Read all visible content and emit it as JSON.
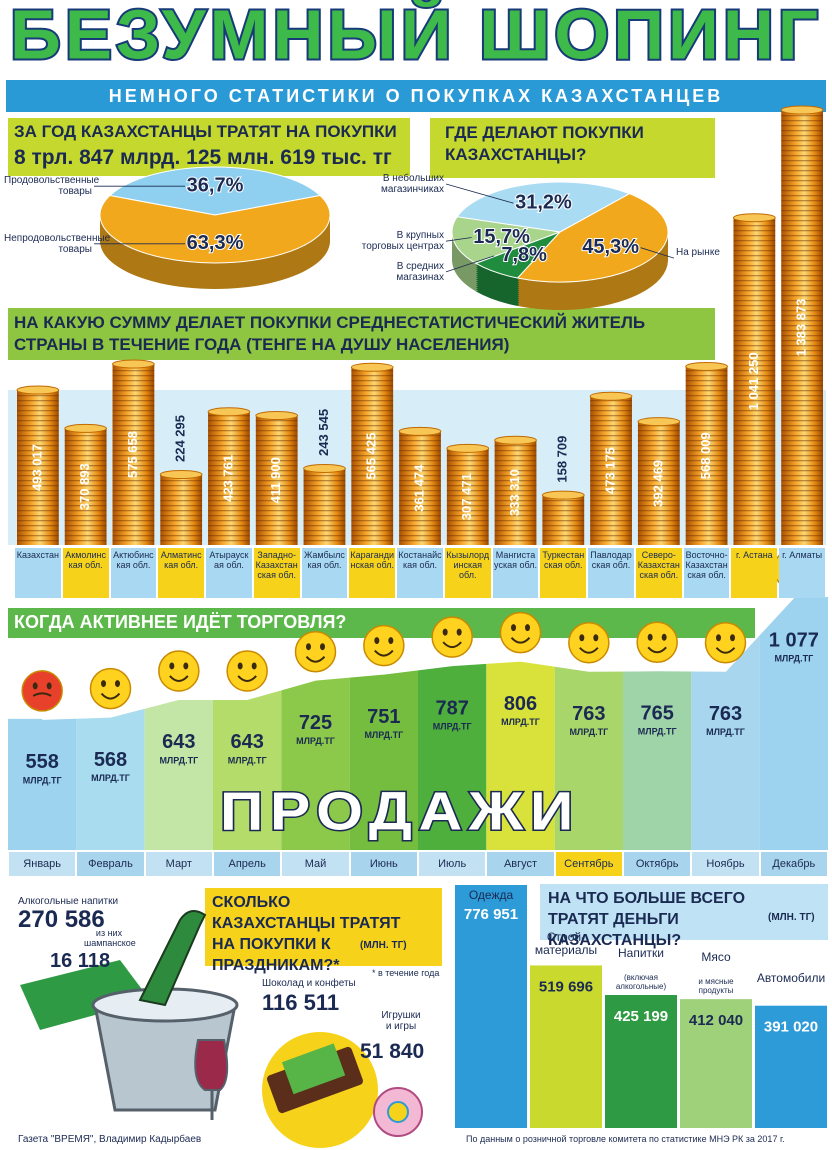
{
  "header": {
    "title": "БЕЗУМНЫЙ ШОПИНГ",
    "subtitle": "НЕМНОГО СТАТИСТИКИ О ПОКУПКАХ КАЗАХСТАНЦЕВ"
  },
  "chart_data": [
    {
      "type": "pie",
      "title": "ЗА ГОД КАЗАХСТАНЦЫ ТРАТЯТ НА ПОКУПКИ",
      "subtitle": "8 трл. 847 млрд. 125 млн. 619 тыс. тг",
      "categories": [
        "Продовольственные товары",
        "Непродовольственные товары"
      ],
      "values": [
        36.7,
        63.3
      ],
      "value_labels": [
        "36,7%",
        "63,3%"
      ],
      "colors": [
        "#8fd0f0",
        "#f2a81d"
      ]
    },
    {
      "type": "pie",
      "title": "ГДЕ ДЕЛАЮТ ПОКУПКИ КАЗАХСТАНЦЫ?",
      "categories": [
        "В небольших магазинчиках",
        "В крупных торговых центрах",
        "В средних магазинах",
        "На рынке"
      ],
      "values": [
        31.2,
        15.7,
        7.8,
        45.3
      ],
      "value_labels": [
        "31,2%",
        "15,7%",
        "7,8%",
        "45,3%"
      ],
      "colors": [
        "#a9dbf3",
        "#a8d48c",
        "#1f8c3e",
        "#f2a81d"
      ]
    },
    {
      "type": "bar",
      "title": "НА КАКУЮ СУММУ ДЕЛАЕТ ПОКУПКИ СРЕДНЕСТАТИСТИЧЕСКИЙ ЖИТЕЛЬ СТРАНЫ В ТЕЧЕНИЕ ГОДА (ТЕНГЕ НА ДУШУ НАСЕЛЕНИЯ)",
      "categories": [
        "Казахстан",
        "Акмолинская обл.",
        "Актюбинская обл.",
        "Алматинская обл.",
        "Атырауская обл.",
        "Западно-Казахстанская обл.",
        "Жамбылская обл.",
        "Карагандинская обл.",
        "Костанайская обл.",
        "Кызылординская обл.",
        "Мангистауская обл.",
        "Туркестанская обл.",
        "Павлодарская обл.",
        "Северо-Казахстанская обл.",
        "Восточно-Казахстанская обл.",
        "г. Астана",
        "г. Алматы"
      ],
      "values": [
        493017,
        370893,
        575658,
        224295,
        423761,
        411900,
        243545,
        565425,
        361474,
        307471,
        333310,
        158709,
        473175,
        392469,
        568009,
        1041250,
        1383873
      ],
      "value_labels": [
        "493 017",
        "370 893",
        "575 658",
        "224 295",
        "423 761",
        "411 900",
        "243 545",
        "565 425",
        "361 474",
        "307 471",
        "333 310",
        "158 709",
        "473 175",
        "392 469",
        "568 009",
        "1 041 250",
        "1 383 873"
      ]
    },
    {
      "type": "area",
      "title": "КОГДА АКТИВНЕЕ ИДЁТ ТОРГОВЛЯ?",
      "annotation": "ПРОДАЖИ",
      "unit": "МЛРД.ТГ",
      "categories": [
        "Январь",
        "Февраль",
        "Март",
        "Апрель",
        "Май",
        "Июнь",
        "Июль",
        "Август",
        "Сентябрь",
        "Октябрь",
        "Ноябрь",
        "Декабрь"
      ],
      "values": [
        558,
        568,
        643,
        643,
        725,
        751,
        787,
        806,
        763,
        765,
        763,
        1077
      ],
      "value_labels": [
        "558",
        "568",
        "643",
        "643",
        "725",
        "751",
        "787",
        "806",
        "763",
        "765",
        "763",
        "1 077"
      ],
      "colors": [
        "#9dd3ef",
        "#a9dcef",
        "#c3e6a6",
        "#b4dc6a",
        "#8cc94a",
        "#74bd3f",
        "#4faf3d",
        "#d9e23a",
        "#a9d66a",
        "#9fd3a8",
        "#a7d6ee",
        "#9dd3ef"
      ]
    },
    {
      "type": "bar",
      "title": "НА ЧТО БОЛЬШЕ ВСЕГО ТРАТЯТ ДЕНЬГИ КАЗАХСТАНЦЫ?",
      "unit": "(МЛН. ТГ)",
      "categories": [
        "Одежда",
        "Строй-материалы",
        "Напитки",
        "Мясо",
        "Автомобили"
      ],
      "category_notes": [
        null,
        null,
        "(включая алкогольные)",
        "и мясные продукты",
        null
      ],
      "values": [
        776951,
        519696,
        425199,
        412040,
        391020
      ],
      "value_labels": [
        "776 951",
        "519 696",
        "425 199",
        "412 040",
        "391 020"
      ],
      "colors": [
        "#2d9bd8",
        "#c9d92d",
        "#2e9a44",
        "#9fd07a",
        "#2d9bd8"
      ]
    }
  ],
  "holidays": {
    "title": "СКОЛЬКО КАЗАХСТАНЦЫ ТРАТЯТ НА ПОКУПКИ К ПРАЗДНИКАМ?*",
    "unit": "(МЛН. ТГ)",
    "footnote": "* в течение года",
    "items": [
      {
        "label": "Алкогольные напитки",
        "value": "270 586"
      },
      {
        "label": "из них шампанское",
        "value": "16 118"
      },
      {
        "label": "Шоколад и конфеты",
        "value": "116 511"
      },
      {
        "label": "Игрушки и игры",
        "value": "51 840"
      }
    ]
  },
  "footer": {
    "author": "Газета \"ВРЕМЯ\", Владимир Кадырбаев",
    "source": "По данным о розничной торговле комитета по статистике МНЭ РК за 2017 г."
  }
}
